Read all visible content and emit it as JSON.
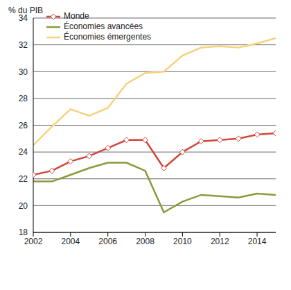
{
  "chart_data": {
    "type": "line",
    "y_label": "% du PIB",
    "x": [
      2002,
      2003,
      2004,
      2005,
      2006,
      2007,
      2008,
      2009,
      2010,
      2011,
      2012,
      2013,
      2014,
      2015
    ],
    "xlim": [
      2002,
      2015
    ],
    "xticks": [
      2002,
      2004,
      2006,
      2008,
      2010,
      2012,
      2014
    ],
    "ylim": [
      18,
      34
    ],
    "yticks": [
      18,
      20,
      22,
      24,
      26,
      28,
      30,
      32,
      34
    ],
    "grid": true,
    "legend": "upper left",
    "series": [
      {
        "name": "Monde",
        "color": "#d2463c",
        "marker": "diamond",
        "values": [
          22.3,
          22.6,
          23.3,
          23.7,
          24.3,
          24.9,
          24.9,
          22.8,
          24.0,
          24.8,
          24.9,
          25.0,
          25.3,
          25.4
        ]
      },
      {
        "name": "Économies avancées",
        "color": "#8a9a3b",
        "marker": "none",
        "values": [
          21.8,
          21.8,
          22.3,
          22.8,
          23.2,
          23.2,
          22.6,
          19.5,
          20.3,
          20.8,
          20.7,
          20.6,
          20.9,
          20.8
        ]
      },
      {
        "name": "Économies émergentes",
        "color": "#f6d27c",
        "marker": "none",
        "values": [
          24.5,
          25.9,
          27.2,
          26.7,
          27.3,
          29.1,
          29.9,
          30.0,
          31.2,
          31.8,
          31.9,
          31.8,
          32.1,
          32.5
        ]
      }
    ]
  }
}
